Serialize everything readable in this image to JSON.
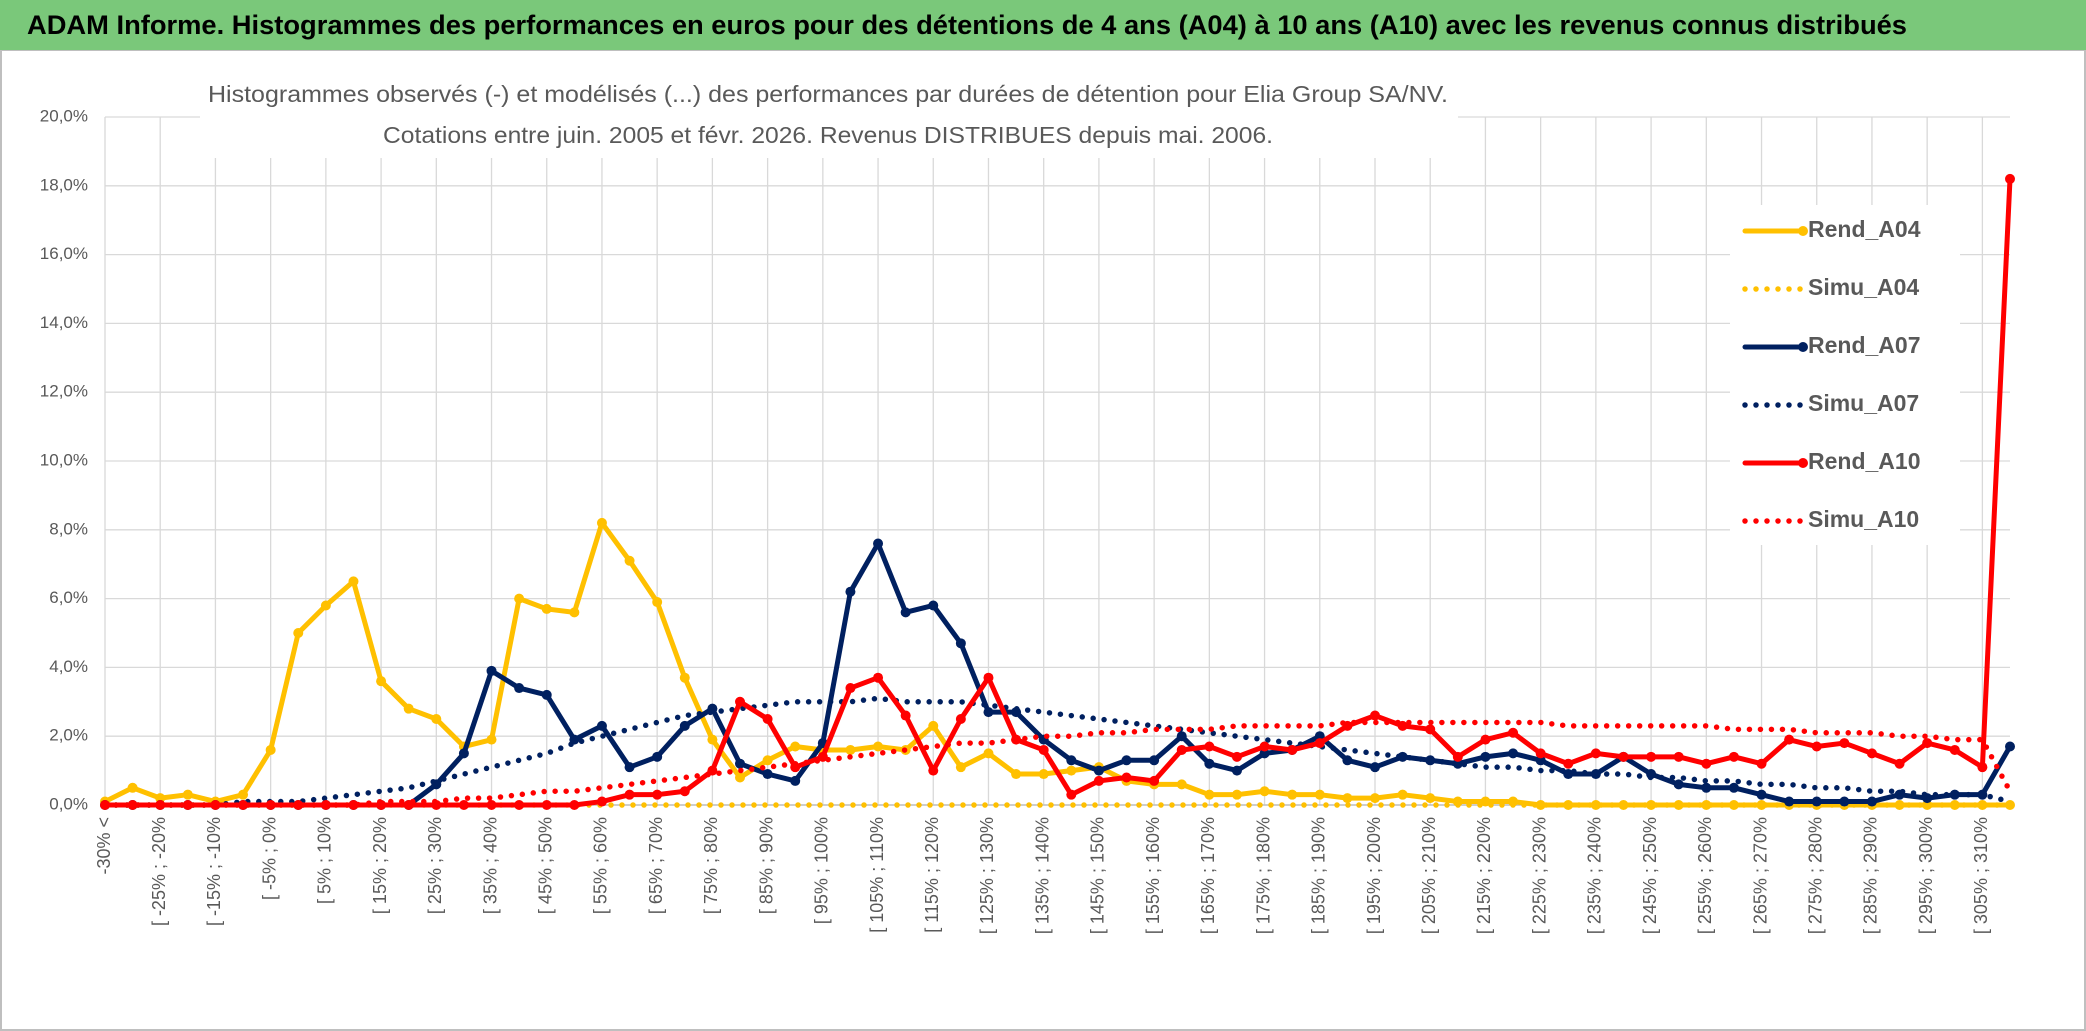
{
  "chart_data": {
    "type": "line",
    "header": "ADAM Informe. Histogrammes des performances en euros pour des détentions de 4 ans (A04) à 10 ans (A10) avec les revenus connus distribués",
    "title": "Histogrammes observés (-) et modélisés (...) des performances par durées de détention pour Elia Group SA/NV.",
    "subtitle": "Cotations entre juin. 2005 et févr. 2026. Revenus DISTRIBUES depuis mai. 2006.",
    "categories": [
      "-30% <",
      null,
      "[ -25% ; -20%",
      null,
      "[ -15% ; -10%",
      null,
      "[ -5% ; 0%",
      null,
      "[ 5% ; 10%",
      null,
      "[ 15% ; 20%",
      null,
      "[ 25% ; 30%",
      null,
      "[ 35% ; 40%",
      null,
      "[ 45% ; 50%",
      null,
      "[ 55% ; 60%",
      null,
      "[ 65% ; 70%",
      null,
      "[ 75% ; 80%",
      null,
      "[ 85% ; 90%",
      null,
      "[ 95% ; 100%",
      null,
      "[ 105% ; 110%",
      null,
      "[ 115% ; 120%",
      null,
      "[ 125% ; 130%",
      null,
      "[ 135% ; 140%",
      null,
      "[ 145% ; 150%",
      null,
      "[ 155% ; 160%",
      null,
      "[ 165% ; 170%",
      null,
      "[ 175% ; 180%",
      null,
      "[ 185% ; 190%",
      null,
      "[ 195% ; 200%",
      null,
      "[ 205% ; 210%",
      null,
      "[ 215% ; 220%",
      null,
      "[ 225% ; 230%",
      null,
      "[ 235% ; 240%",
      null,
      "[ 245% ; 250%",
      null,
      "[ 255% ; 260%",
      null,
      "[ 265% ; 270%",
      null,
      "[ 275% ; 280%",
      null,
      "[ 285% ; 290%",
      null,
      "[ 295% ; 300%",
      null,
      "[ 305% ; 310%",
      null
    ],
    "series": [
      {
        "name": "Rend_A04",
        "color": "#FFC000",
        "line_style": "solid",
        "markers": true,
        "values": [
          0.1,
          0.5,
          0.2,
          0.3,
          0.1,
          0.3,
          1.6,
          5.0,
          5.8,
          6.5,
          3.6,
          2.8,
          2.5,
          1.7,
          1.9,
          6.0,
          5.7,
          5.6,
          8.2,
          7.1,
          5.9,
          3.7,
          1.9,
          0.8,
          1.3,
          1.7,
          1.6,
          1.6,
          1.7,
          1.6,
          2.3,
          1.1,
          1.5,
          0.9,
          0.9,
          1.0,
          1.1,
          0.7,
          0.6,
          0.6,
          0.3,
          0.3,
          0.4,
          0.3,
          0.3,
          0.2,
          0.2,
          0.3,
          0.2,
          0.1,
          0.1,
          0.1,
          0,
          0,
          0,
          0,
          0,
          0,
          0,
          0,
          0,
          0,
          0,
          0,
          0,
          0,
          0,
          0,
          0,
          0
        ]
      },
      {
        "name": "Simu_A04",
        "color": "#FFC000",
        "line_style": "dotted",
        "markers": false,
        "values": [
          0,
          0,
          0,
          0,
          0,
          0,
          0,
          0,
          0,
          0,
          0,
          0,
          0,
          0,
          0,
          0,
          0,
          0,
          0,
          0,
          0,
          0,
          0,
          0,
          0,
          0,
          0,
          0,
          0,
          0,
          0,
          0,
          0,
          0,
          0,
          0,
          0,
          0,
          0,
          0,
          0,
          0,
          0,
          0,
          0,
          0,
          0,
          0,
          0,
          0,
          0,
          0,
          0,
          0,
          0,
          0,
          0,
          0,
          0,
          0,
          0,
          0,
          0,
          0,
          0,
          0,
          0,
          0,
          0,
          0
        ]
      },
      {
        "name": "Rend_A07",
        "color": "#002060",
        "line_style": "solid",
        "markers": true,
        "values": [
          0,
          0,
          0,
          0,
          0,
          0,
          0,
          0,
          0,
          0,
          0,
          0,
          0.6,
          1.5,
          3.9,
          3.4,
          3.2,
          1.9,
          2.3,
          1.1,
          1.4,
          2.3,
          2.8,
          1.2,
          0.9,
          0.7,
          1.8,
          6.2,
          7.6,
          5.6,
          5.8,
          4.7,
          2.7,
          2.7,
          1.9,
          1.3,
          1.0,
          1.3,
          1.3,
          2.0,
          1.2,
          1.0,
          1.5,
          1.6,
          2.0,
          1.3,
          1.1,
          1.4,
          1.3,
          1.2,
          1.4,
          1.5,
          1.3,
          0.9,
          0.9,
          1.4,
          0.9,
          0.6,
          0.5,
          0.5,
          0.3,
          0.1,
          0.1,
          0.1,
          0.1,
          0.3,
          0.2,
          0.3,
          0.3,
          1.7
        ]
      },
      {
        "name": "Simu_A07",
        "color": "#002060",
        "line_style": "dotted",
        "markers": false,
        "values": [
          0,
          0,
          0,
          0,
          0,
          0.1,
          0.1,
          0.1,
          0.2,
          0.3,
          0.4,
          0.5,
          0.7,
          0.9,
          1.1,
          1.3,
          1.5,
          1.8,
          2.0,
          2.2,
          2.4,
          2.6,
          2.7,
          2.8,
          2.9,
          3.0,
          3.0,
          3.0,
          3.1,
          3.0,
          3.0,
          3.0,
          2.9,
          2.8,
          2.7,
          2.6,
          2.5,
          2.4,
          2.3,
          2.2,
          2.1,
          2.0,
          1.9,
          1.8,
          1.7,
          1.6,
          1.5,
          1.4,
          1.3,
          1.2,
          1.1,
          1.1,
          1.0,
          1.0,
          0.9,
          0.9,
          0.8,
          0.8,
          0.7,
          0.7,
          0.6,
          0.6,
          0.5,
          0.5,
          0.4,
          0.4,
          0.3,
          0.3,
          0.3,
          0.1
        ]
      },
      {
        "name": "Rend_A10",
        "color": "#FF0000",
        "line_style": "solid",
        "markers": true,
        "values": [
          0,
          0,
          0,
          0,
          0,
          0,
          0,
          0,
          0,
          0,
          0,
          0,
          0,
          0,
          0,
          0,
          0,
          0,
          0.1,
          0.3,
          0.3,
          0.4,
          1.0,
          3.0,
          2.5,
          1.1,
          1.4,
          3.4,
          3.7,
          2.6,
          1.0,
          2.5,
          3.7,
          1.9,
          1.6,
          0.3,
          0.7,
          0.8,
          0.7,
          1.6,
          1.7,
          1.4,
          1.7,
          1.6,
          1.8,
          2.3,
          2.6,
          2.3,
          2.2,
          1.4,
          1.9,
          2.1,
          1.5,
          1.2,
          1.5,
          1.4,
          1.4,
          1.4,
          1.2,
          1.4,
          1.2,
          1.9,
          1.7,
          1.8,
          1.5,
          1.2,
          1.8,
          1.6,
          1.1,
          18.2
        ]
      },
      {
        "name": "Simu_A10",
        "color": "#FF0000",
        "line_style": "dotted",
        "markers": false,
        "values": [
          0,
          0,
          0,
          0,
          0,
          0,
          0,
          0,
          0,
          0,
          0.1,
          0.1,
          0.1,
          0.2,
          0.2,
          0.3,
          0.4,
          0.4,
          0.5,
          0.6,
          0.7,
          0.8,
          0.9,
          1.0,
          1.1,
          1.2,
          1.3,
          1.4,
          1.5,
          1.6,
          1.7,
          1.8,
          1.8,
          1.9,
          2.0,
          2.0,
          2.1,
          2.1,
          2.2,
          2.2,
          2.2,
          2.3,
          2.3,
          2.3,
          2.3,
          2.4,
          2.4,
          2.4,
          2.4,
          2.4,
          2.4,
          2.4,
          2.4,
          2.3,
          2.3,
          2.3,
          2.3,
          2.3,
          2.3,
          2.2,
          2.2,
          2.2,
          2.1,
          2.1,
          2.1,
          2.0,
          2.0,
          1.9,
          1.9,
          0.4
        ]
      }
    ],
    "ylim": [
      0,
      20
    ],
    "yticks": [
      {
        "value": 0,
        "label": "0,0%"
      },
      {
        "value": 2,
        "label": "2,0%"
      },
      {
        "value": 4,
        "label": "4,0%"
      },
      {
        "value": 6,
        "label": "6,0%"
      },
      {
        "value": 8,
        "label": "8,0%"
      },
      {
        "value": 10,
        "label": "10,0%"
      },
      {
        "value": 12,
        "label": "12,0%"
      },
      {
        "value": 14,
        "label": "14,0%"
      },
      {
        "value": 16,
        "label": "16,0%"
      },
      {
        "value": 18,
        "label": "18,0%"
      },
      {
        "value": 20,
        "label": "20,0%"
      }
    ],
    "grid": true,
    "legend": "right"
  }
}
